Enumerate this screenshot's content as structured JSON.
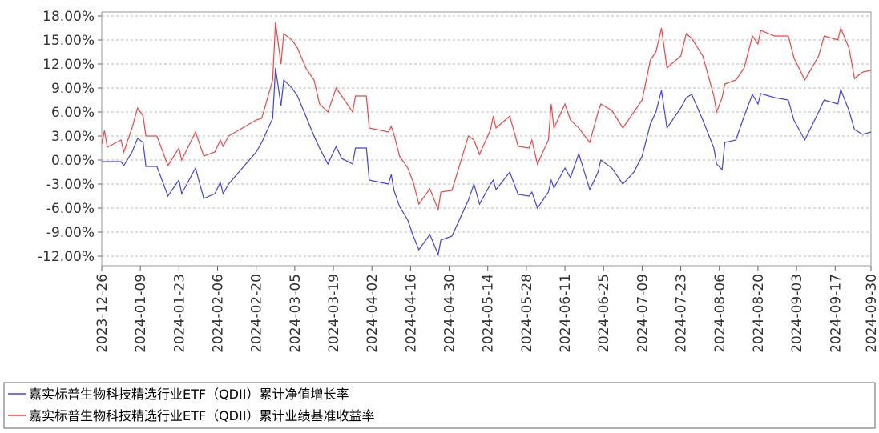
{
  "chart_data": {
    "type": "line",
    "x": [
      "2023-12-26",
      "2023-12-27",
      "2023-12-28",
      "2024-01-02",
      "2024-01-03",
      "2024-01-06",
      "2024-01-08",
      "2024-01-10",
      "2024-01-11",
      "2024-01-15",
      "2024-01-19",
      "2024-01-23",
      "2024-01-24",
      "2024-01-29",
      "2024-02-01",
      "2024-02-05",
      "2024-02-07",
      "2024-02-08",
      "2024-02-10",
      "2024-02-20",
      "2024-02-22",
      "2024-02-26",
      "2024-02-27",
      "2024-02-29",
      "2024-03-01",
      "2024-03-04",
      "2024-03-06",
      "2024-03-09",
      "2024-03-12",
      "2024-03-14",
      "2024-03-17",
      "2024-03-20",
      "2024-03-22",
      "2024-03-26",
      "2024-03-27",
      "2024-03-31",
      "2024-04-01",
      "2024-04-08",
      "2024-04-09",
      "2024-04-10",
      "2024-04-12",
      "2024-04-15",
      "2024-04-17",
      "2024-04-19",
      "2024-04-23",
      "2024-04-26",
      "2024-04-27",
      "2024-05-01",
      "2024-05-07",
      "2024-05-09",
      "2024-05-11",
      "2024-05-15",
      "2024-05-16",
      "2024-05-17",
      "2024-05-22",
      "2024-05-25",
      "2024-05-29",
      "2024-05-30",
      "2024-06-01",
      "2024-06-05",
      "2024-06-06",
      "2024-06-07",
      "2024-06-11",
      "2024-06-13",
      "2024-06-16",
      "2024-06-20",
      "2024-06-23",
      "2024-06-24",
      "2024-06-28",
      "2024-07-02",
      "2024-07-06",
      "2024-07-09",
      "2024-07-12",
      "2024-07-14",
      "2024-07-16",
      "2024-07-18",
      "2024-07-23",
      "2024-07-25",
      "2024-07-27",
      "2024-07-31",
      "2024-08-04",
      "2024-08-05",
      "2024-08-07",
      "2024-08-08",
      "2024-08-12",
      "2024-08-15",
      "2024-08-18",
      "2024-08-20",
      "2024-08-21",
      "2024-08-26",
      "2024-08-31",
      "2024-09-02",
      "2024-09-06",
      "2024-09-11",
      "2024-09-13",
      "2024-09-18",
      "2024-09-19",
      "2024-09-22",
      "2024-09-24",
      "2024-09-27",
      "2024-09-30"
    ],
    "series": [
      {
        "name": "嘉实标普生物科技精选行业ETF（QDII）累计净值增长率",
        "color": "#4040ff",
        "values": [
          -0.2,
          -0.2,
          -0.2,
          -0.2,
          -0.7,
          1.0,
          2.7,
          2.2,
          -0.8,
          -0.8,
          -4.5,
          -2.5,
          -4.2,
          -1.0,
          -4.8,
          -4.2,
          -2.8,
          -4.2,
          -3.0,
          1.0,
          2.2,
          5.2,
          11.5,
          6.8,
          10.0,
          9.0,
          8.0,
          5.5,
          3.0,
          1.5,
          -0.5,
          1.7,
          0.2,
          -0.5,
          1.5,
          1.5,
          -2.5,
          -3.0,
          -1.8,
          -3.8,
          -5.8,
          -7.5,
          -9.5,
          -11.2,
          -9.3,
          -11.8,
          -10.0,
          -9.5,
          -5.0,
          -3.0,
          -5.5,
          -3.0,
          -2.5,
          -3.7,
          -1.5,
          -4.3,
          -4.5,
          -4.0,
          -6.0,
          -4.0,
          -2.5,
          -3.5,
          -1.0,
          -2.2,
          0.8,
          -3.7,
          -1.5,
          0.0,
          -1.0,
          -3.0,
          -1.5,
          0.5,
          4.5,
          6.0,
          8.7,
          4.0,
          6.5,
          7.8,
          8.2,
          5.0,
          1.5,
          -0.5,
          -1.2,
          2.2,
          2.5,
          5.5,
          8.2,
          7.0,
          8.3,
          7.8,
          7.5,
          5.0,
          2.5,
          6.0,
          7.5,
          7.0,
          8.8,
          6.2,
          3.8,
          3.2,
          3.5
        ]
      },
      {
        "name": "嘉实标普生物科技精选行业ETF（QDII）累计业绩基准收益率",
        "color": "#ff4040",
        "values": [
          2.0,
          3.7,
          1.6,
          2.5,
          1.0,
          4.0,
          6.5,
          5.5,
          3.0,
          3.0,
          -0.7,
          1.5,
          0.0,
          3.5,
          0.5,
          1.0,
          2.5,
          1.7,
          3.0,
          5.0,
          5.2,
          10.0,
          17.2,
          12.0,
          15.8,
          15.0,
          14.0,
          11.5,
          10.0,
          7.0,
          6.0,
          9.0,
          8.0,
          6.0,
          8.0,
          8.0,
          4.0,
          3.5,
          4.2,
          3.2,
          0.5,
          -1.0,
          -2.8,
          -5.5,
          -3.6,
          -6.2,
          -4.0,
          -3.8,
          3.0,
          2.5,
          0.7,
          3.8,
          5.5,
          4.0,
          5.5,
          1.7,
          1.5,
          2.5,
          -0.5,
          2.5,
          7.0,
          4.0,
          7.0,
          5.0,
          4.0,
          2.2,
          6.0,
          7.0,
          6.2,
          4.0,
          6.0,
          7.5,
          12.5,
          13.5,
          16.5,
          11.5,
          13.0,
          15.8,
          15.2,
          13.0,
          8.0,
          6.0,
          7.8,
          9.5,
          10.0,
          11.5,
          15.5,
          14.5,
          16.2,
          15.5,
          15.5,
          12.8,
          10.0,
          13.0,
          15.5,
          15.0,
          16.5,
          14.0,
          10.2,
          11.0,
          11.2
        ]
      }
    ],
    "xlim": [
      "2023-12-26",
      "2024-09-30"
    ],
    "xticks": [
      "2023-12-26",
      "2024-01-09",
      "2024-01-23",
      "2024-02-06",
      "2024-02-20",
      "2024-03-05",
      "2024-03-19",
      "2024-04-02",
      "2024-04-16",
      "2024-04-30",
      "2024-05-14",
      "2024-05-28",
      "2024-06-11",
      "2024-06-25",
      "2024-07-09",
      "2024-07-23",
      "2024-08-06",
      "2024-08-20",
      "2024-09-03",
      "2024-09-17",
      "2024-09-30"
    ],
    "ylim": [
      -13.2,
      18.5
    ],
    "yticks": [
      {
        "value": 18,
        "label": "18.00%"
      },
      {
        "value": 15,
        "label": "15.00%"
      },
      {
        "value": 12,
        "label": "12.00%"
      },
      {
        "value": 9,
        "label": "9.00%"
      },
      {
        "value": 6,
        "label": "6.00%"
      },
      {
        "value": 3,
        "label": "3.00%"
      },
      {
        "value": 0,
        "label": "0.00%"
      },
      {
        "value": -3,
        "label": "-3.00%"
      },
      {
        "value": -6,
        "label": "-6.00%"
      },
      {
        "value": -9,
        "label": "-9.00%"
      },
      {
        "value": -12,
        "label": "-12.00%"
      }
    ],
    "grid": true,
    "legend": "bottom"
  }
}
